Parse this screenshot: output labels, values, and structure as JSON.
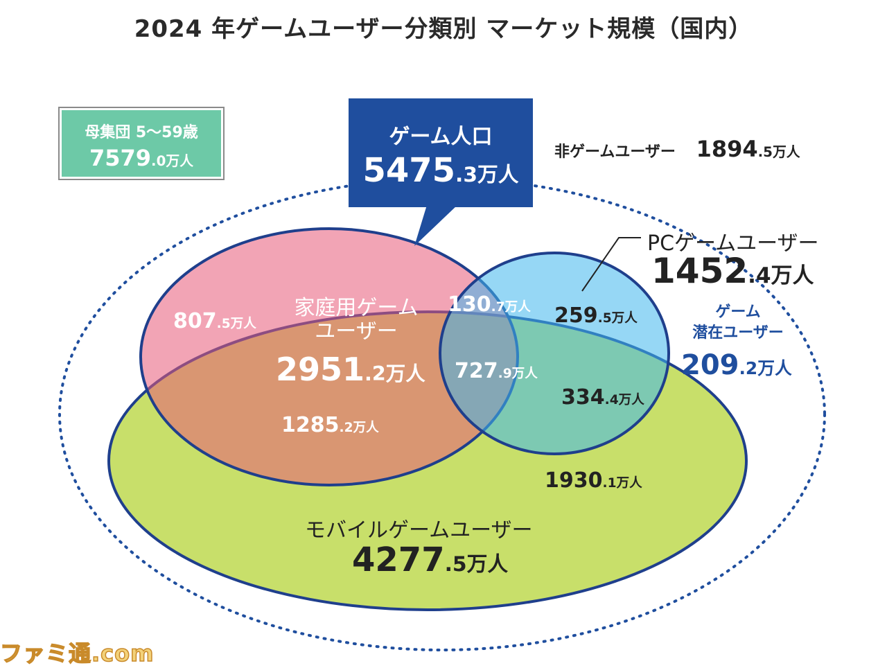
{
  "title": "2024 年ゲームユーザー分類別 マーケット規模（国内）",
  "population": {
    "label": "母集団 5〜59歳",
    "value_int": "7579",
    "value_dec": ".0",
    "unit": "万人"
  },
  "game_population": {
    "label": "ゲーム人口",
    "value_int": "5475",
    "value_dec": ".3",
    "unit": "万人"
  },
  "non_game_users": {
    "label": "非ゲームユーザー",
    "value_int": "1894",
    "value_dec": ".5",
    "unit": "万人"
  },
  "pc_users": {
    "label": "PCゲームユーザー",
    "value_int": "1452",
    "value_dec": ".4",
    "unit": "万人"
  },
  "potential_users": {
    "label_line1": "ゲーム",
    "label_line2": "潜在ユーザー",
    "value_int": "209",
    "value_dec": ".2",
    "unit": "万人"
  },
  "home_users": {
    "label_line1": "家庭用ゲーム",
    "label_line2": "ユーザー",
    "value_int": "2951",
    "value_dec": ".2",
    "unit": "万人"
  },
  "mobile_users": {
    "label": "モバイルゲームユーザー",
    "value_int": "4277",
    "value_dec": ".5",
    "unit": "万人"
  },
  "segments": {
    "home_only": {
      "value_int": "807",
      "value_dec": ".5",
      "unit": "万人"
    },
    "home_pc": {
      "value_int": "130",
      "value_dec": ".7",
      "unit": "万人"
    },
    "pc_only": {
      "value_int": "259",
      "value_dec": ".5",
      "unit": "万人"
    },
    "all_three": {
      "value_int": "727",
      "value_dec": ".9",
      "unit": "万人"
    },
    "pc_mobile": {
      "value_int": "334",
      "value_dec": ".4",
      "unit": "万人"
    },
    "home_mobile": {
      "value_int": "1285",
      "value_dec": ".2",
      "unit": "万人"
    },
    "mobile_only": {
      "value_int": "1930",
      "value_dec": ".1",
      "unit": "万人"
    }
  },
  "colors": {
    "home": "#e85a78",
    "pc": "#3fb6ec",
    "mobile": "#c8df6a",
    "outline": "#1f3f8c",
    "dotted": "#1f4e9e"
  },
  "watermark": "ファミ通.com"
}
